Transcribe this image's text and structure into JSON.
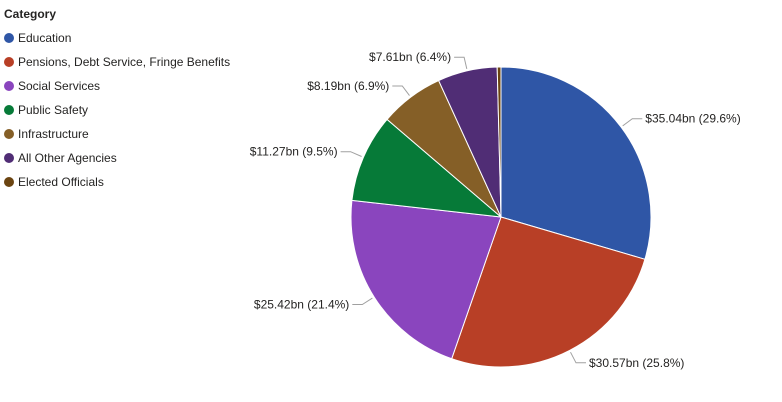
{
  "chart_data": {
    "type": "pie",
    "legend_title": "Category",
    "legend_position": "top-left",
    "categories": [
      "Education",
      "Pensions, Debt Service, Fringe Benefits",
      "Social Services",
      "Public Safety",
      "Infrastructure",
      "All Other Agencies",
      "Elected Officials"
    ],
    "values": [
      35.04,
      30.57,
      25.42,
      11.27,
      8.19,
      7.61,
      0.48
    ],
    "data_labels": [
      "$35.04bn (29.6%)",
      "$30.57bn (25.8%)",
      "$25.42bn (21.4%)",
      "$11.27bn (9.5%)",
      "$8.19bn (6.9%)",
      "$7.61bn (6.4%)",
      ""
    ],
    "colors": [
      "#2F56A6",
      "#B83F26",
      "#8A45BE",
      "#067A38",
      "#855F27",
      "#502D75",
      "#6B4411"
    ]
  }
}
